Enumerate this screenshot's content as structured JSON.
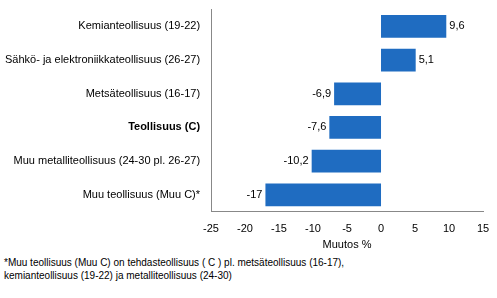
{
  "chart_data": {
    "type": "bar",
    "orientation": "horizontal",
    "categories": [
      "Kemianteollisuus (19-22)",
      "Sähkö- ja elektroniikkateollisuus (26-27)",
      "Metsäteollisuus (16-17)",
      "Teollisuus (C)",
      "Muu metalliteollisuus (24-30 pl. 26-27)",
      "Muu teollisuus (Muu C)*"
    ],
    "values": [
      9.6,
      5.1,
      -6.9,
      -7.6,
      -10.2,
      -17
    ],
    "value_labels": [
      "9,6",
      "5,1",
      "-6,9",
      "-7,6",
      "-10,2",
      "-17"
    ],
    "data_labels": true,
    "color": "#1f6cc1",
    "x_label": "Muutos %",
    "xlim": [
      -25,
      15
    ],
    "xticks": [
      -25,
      -20,
      -15,
      -10,
      -5,
      0,
      5,
      10,
      15
    ],
    "grid": false,
    "notes": [
      "*Muu teollisuus (Muu C) on tehdasteollisuus ( C ) pl. metsäteollisuus (16-17),",
      "kemianteollisuus (19-22) ja metalliteollisuus (24-30)"
    ]
  }
}
